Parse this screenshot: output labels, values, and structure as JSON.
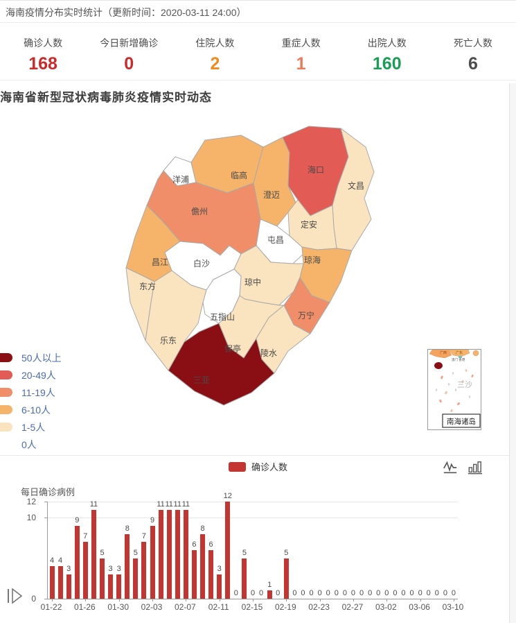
{
  "header": {
    "title": "海南疫情分布实时统计（更新时间：2020-03-11 24:00）"
  },
  "stats": [
    {
      "label": "确诊人数",
      "value": "168",
      "color": "#cc2929"
    },
    {
      "label": "今日新增确诊",
      "value": "0",
      "color": "#cc2929"
    },
    {
      "label": "住院人数",
      "value": "2",
      "color": "#f08c1e"
    },
    {
      "label": "重症人数",
      "value": "1",
      "color": "#ee7959"
    },
    {
      "label": "出院人数",
      "value": "160",
      "color": "#1a9e54"
    },
    {
      "label": "死亡人数",
      "value": "6",
      "color": "#4d4d4d"
    }
  ],
  "map": {
    "title": "海南省新型冠状病毒肺炎疫情实时动态",
    "legend": [
      {
        "label": "50人以上",
        "color": "#8a0f14"
      },
      {
        "label": "20-49人",
        "color": "#e25b54"
      },
      {
        "label": "11-19人",
        "color": "#f18e6a"
      },
      {
        "label": "6-10人",
        "color": "#f5b46a"
      },
      {
        "label": "1-5人",
        "color": "#fae3bf"
      },
      {
        "label": "0人",
        "color": "#ffffff"
      }
    ],
    "regions": [
      {
        "name": "洋浦",
        "level": 5
      },
      {
        "name": "临高",
        "level": 3
      },
      {
        "name": "澄迈",
        "level": 3
      },
      {
        "name": "海口",
        "level": 1
      },
      {
        "name": "文昌",
        "level": 4
      },
      {
        "name": "儋州",
        "level": 2
      },
      {
        "name": "定安",
        "level": 4
      },
      {
        "name": "屯昌",
        "level": 5
      },
      {
        "name": "昌江",
        "level": 3
      },
      {
        "name": "白沙",
        "level": 5
      },
      {
        "name": "琼海",
        "level": 3
      },
      {
        "name": "东方",
        "level": 4
      },
      {
        "name": "琼中",
        "level": 4
      },
      {
        "name": "万宁",
        "level": 2
      },
      {
        "name": "五指山",
        "level": 5
      },
      {
        "name": "乐东",
        "level": 4
      },
      {
        "name": "保亭",
        "level": 4
      },
      {
        "name": "陵水",
        "level": 4
      },
      {
        "name": "三亚",
        "level": 0
      }
    ],
    "inset": {
      "region_label": "三沙",
      "caption": "南海诸岛",
      "mini_labels": [
        "广西",
        "广东",
        "澳门 香港"
      ]
    }
  },
  "chart_data": {
    "type": "bar",
    "title": "每日确诊病例",
    "series": [
      {
        "name": "确诊人数",
        "values": [
          4,
          4,
          3,
          9,
          7,
          11,
          5,
          3,
          3,
          8,
          5,
          7,
          9,
          11,
          11,
          11,
          11,
          6,
          8,
          6,
          3,
          12,
          0,
          5,
          0,
          0,
          1,
          0,
          5,
          0,
          0,
          0,
          0,
          0,
          0,
          0,
          0,
          0,
          0,
          0,
          0,
          0,
          0,
          0,
          0,
          0,
          0,
          0,
          0
        ]
      }
    ],
    "x": [
      "01-22",
      "01-23",
      "01-24",
      "01-25",
      "01-26",
      "01-27",
      "01-28",
      "01-29",
      "01-30",
      "01-31",
      "02-01",
      "02-02",
      "02-03",
      "02-04",
      "02-05",
      "02-06",
      "02-07",
      "02-08",
      "02-09",
      "02-10",
      "02-11",
      "02-12",
      "02-13",
      "02-14",
      "02-15",
      "02-16",
      "02-17",
      "02-18",
      "02-19",
      "02-20",
      "02-21",
      "02-22",
      "02-23",
      "02-24",
      "02-25",
      "02-26",
      "02-27",
      "02-28",
      "02-29",
      "03-01",
      "03-02",
      "03-03",
      "03-04",
      "03-05",
      "03-06",
      "03-07",
      "03-08",
      "03-09",
      "03-10"
    ],
    "x_tick_labels": [
      "01-22",
      "01-26",
      "01-30",
      "02-03",
      "02-07",
      "02-11",
      "02-15",
      "02-19",
      "02-23",
      "02-27",
      "03-02",
      "03-06",
      "03-10"
    ],
    "x_tick_every": 4,
    "y_ticks": [
      0,
      10,
      12
    ],
    "ylim": [
      0,
      12
    ],
    "bar_color": "#c23531",
    "grid": "lines-at-10-and-12",
    "legend_position": "top-center"
  }
}
